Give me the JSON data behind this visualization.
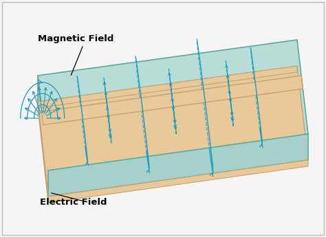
{
  "background_color": "#f5f5f5",
  "border_color": "#bbbbbb",
  "substrate_top_color": "#b8ddd8",
  "substrate_left_face_color": "#9ecdc7",
  "substrate_right_face_color": "#a8d4ce",
  "substrate_edge_color": "#5aaa99",
  "ground_color": "#e8c99a",
  "ground_edge_color": "#c8a070",
  "trace_color": "#e8c99a",
  "trace_edge_color": "#c8a070",
  "field_color": "#1a9bbf",
  "label_color": "#000000",
  "magnetic_field_label": "Magnetic Field",
  "electric_field_label": "Electric Field",
  "fig_width": 4.74,
  "fig_height": 3.45,
  "dpi": 100
}
